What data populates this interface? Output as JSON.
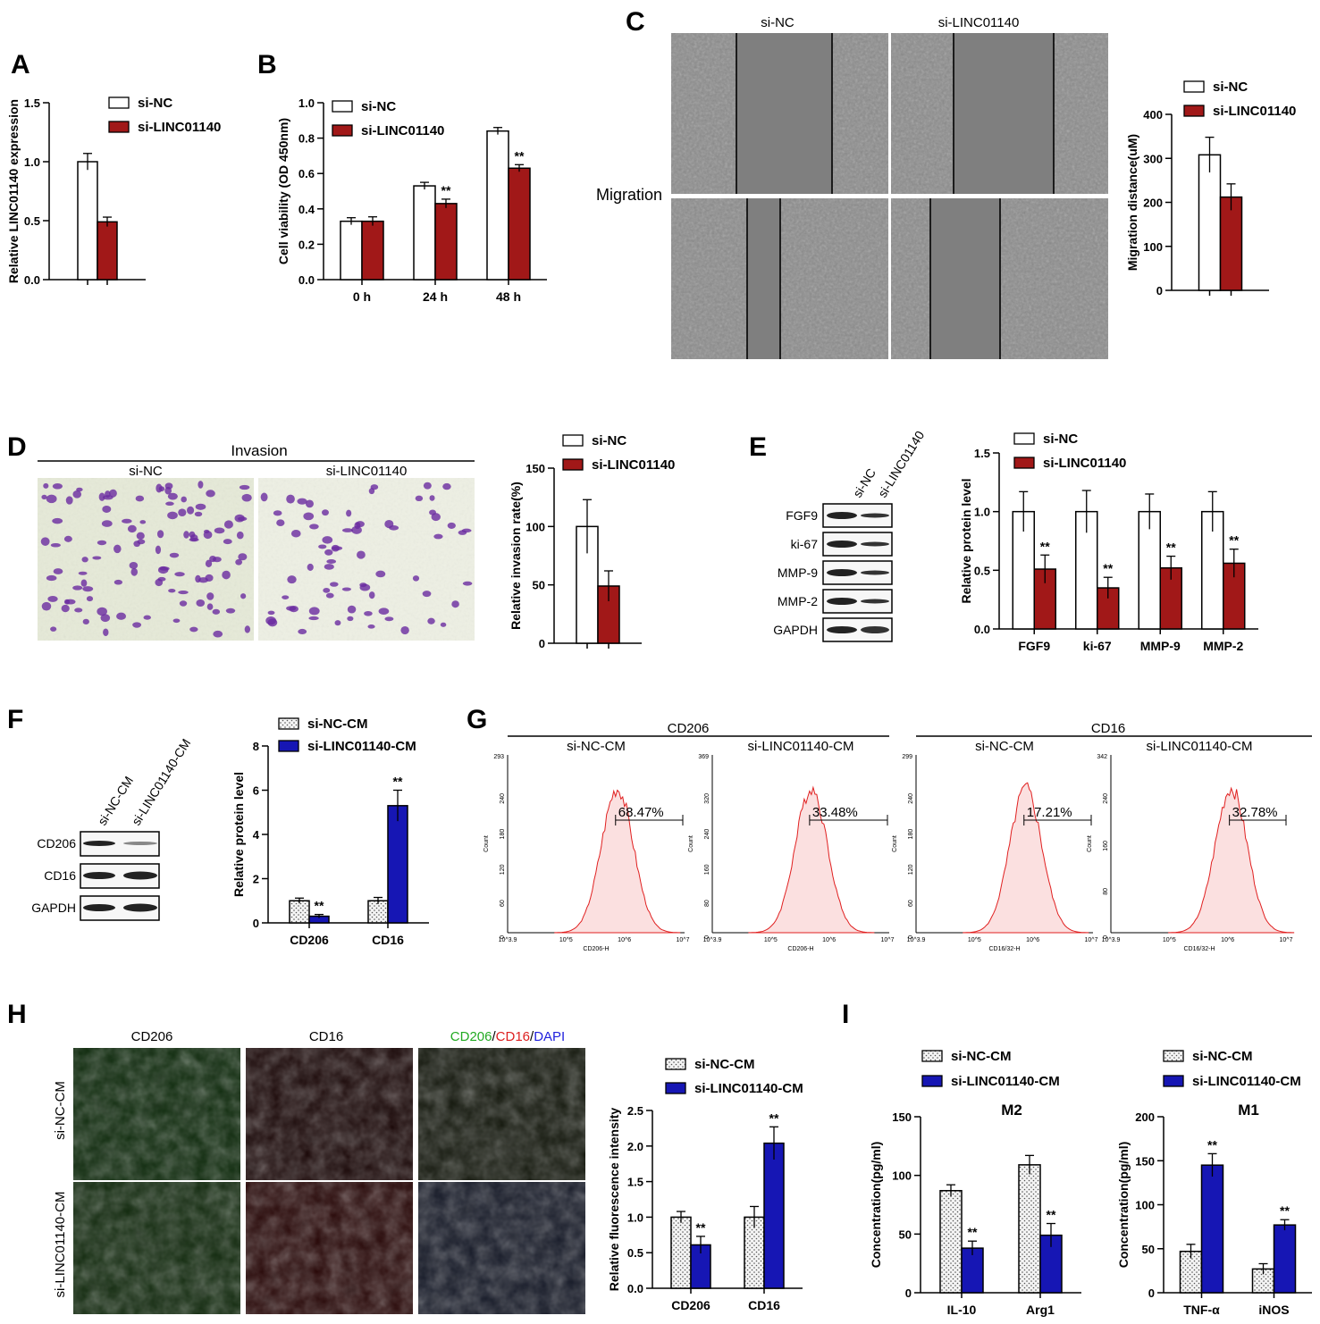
{
  "colors": {
    "nc": "#ffffff",
    "si": "#a11818",
    "cm_nc": "#f2f2f2",
    "cm_si": "#1616b4",
    "hist_fill": "#fbe0e0",
    "hist_line": "#e02020",
    "dot_pattern": "dotted-fill"
  },
  "panels": {
    "A": {
      "letter": "A",
      "legend": [
        "si-NC",
        "si-LINC01140"
      ],
      "chart_data": {
        "type": "bar",
        "categories": [
          ""
        ],
        "series": [
          {
            "name": "si-NC",
            "values": [
              1.0
            ],
            "errors": [
              0.07
            ]
          },
          {
            "name": "si-LINC01140",
            "values": [
              0.49
            ],
            "errors": [
              0.04
            ]
          }
        ],
        "ylabel": "Relative LINC01140 expression",
        "ylim": [
          0,
          1.5
        ],
        "yticks": [
          "0.0",
          "0.5",
          "1.0",
          "1.5"
        ],
        "annotations": [
          "",
          "**"
        ]
      }
    },
    "B": {
      "letter": "B",
      "legend": [
        "si-NC",
        "si-LINC01140"
      ],
      "chart_data": {
        "type": "bar",
        "categories": [
          "0 h",
          "24 h",
          "48 h"
        ],
        "series": [
          {
            "name": "si-NC",
            "values": [
              0.33,
              0.53,
              0.84
            ],
            "errors": [
              0.02,
              0.02,
              0.02
            ]
          },
          {
            "name": "si-LINC01140",
            "values": [
              0.33,
              0.43,
              0.63
            ],
            "errors": [
              0.025,
              0.025,
              0.02
            ]
          }
        ],
        "ylabel": "Cell viability (OD 450nm)",
        "ylim": [
          0,
          1.0
        ],
        "yticks": [
          "0.0",
          "0.2",
          "0.4",
          "0.6",
          "0.8",
          "1.0"
        ],
        "annotations": [
          "",
          "**",
          "**"
        ]
      }
    },
    "C": {
      "letter": "C",
      "col_labels": [
        "si-NC",
        "si-LINC01140"
      ],
      "row_label": "Migration",
      "legend": [
        "si-NC",
        "si-LINC01140"
      ],
      "chart_data": {
        "type": "bar",
        "categories": [
          ""
        ],
        "series": [
          {
            "name": "si-NC",
            "values": [
              308
            ],
            "errors": [
              40
            ]
          },
          {
            "name": "si-LINC01140",
            "values": [
              212
            ],
            "errors": [
              30
            ]
          }
        ],
        "ylabel": "Migration distance(uM)",
        "ylim": [
          0,
          400
        ],
        "yticks": [
          "0",
          "100",
          "200",
          "300",
          "400"
        ],
        "annotations": [
          "",
          "*"
        ]
      }
    },
    "D": {
      "letter": "D",
      "header": "Invasion",
      "col_labels": [
        "si-NC",
        "si-LINC01140"
      ],
      "legend": [
        "si-NC",
        "si-LINC01140"
      ],
      "chart_data": {
        "type": "bar",
        "categories": [
          ""
        ],
        "series": [
          {
            "name": "si-NC",
            "values": [
              100
            ],
            "errors": [
              23
            ]
          },
          {
            "name": "si-LINC01140",
            "values": [
              49
            ],
            "errors": [
              13
            ]
          }
        ],
        "ylabel": "Relative invasion rate(%)",
        "ylim": [
          0,
          150
        ],
        "yticks": [
          "0",
          "50",
          "100",
          "150"
        ],
        "annotations": [
          "",
          "*"
        ]
      }
    },
    "E": {
      "letter": "E",
      "blot_lanes": [
        "si-NC",
        "si-LINC01140"
      ],
      "blot_rows": [
        "FGF9",
        "ki-67",
        "MMP-9",
        "MMP-2",
        "GAPDH"
      ],
      "legend": [
        "si-NC",
        "si-LINC01140"
      ],
      "chart_data": {
        "type": "bar",
        "categories": [
          "FGF9",
          "ki-67",
          "MMP-9",
          "MMP-2"
        ],
        "series": [
          {
            "name": "si-NC",
            "values": [
              1.0,
              1.0,
              1.0,
              1.0
            ],
            "errors": [
              0.17,
              0.18,
              0.15,
              0.17
            ]
          },
          {
            "name": "si-LINC01140",
            "values": [
              0.51,
              0.35,
              0.52,
              0.56
            ],
            "errors": [
              0.12,
              0.09,
              0.1,
              0.12
            ]
          }
        ],
        "ylabel": "Relative protein level",
        "ylim": [
          0,
          1.5
        ],
        "yticks": [
          "0.0",
          "0.5",
          "1.0",
          "1.5"
        ],
        "annotations": [
          "**",
          "**",
          "**",
          "**"
        ]
      }
    },
    "F": {
      "letter": "F",
      "blot_lanes": [
        "si-NC-CM",
        "si-LINC01140-CM"
      ],
      "blot_rows": [
        "CD206",
        "CD16",
        "GAPDH"
      ],
      "legend": [
        "si-NC-CM",
        "si-LINC01140-CM"
      ],
      "chart_data": {
        "type": "bar",
        "categories": [
          "CD206",
          "CD16"
        ],
        "series": [
          {
            "name": "si-NC-CM",
            "values": [
              1.0,
              1.0
            ],
            "errors": [
              0.12,
              0.15
            ]
          },
          {
            "name": "si-LINC01140-CM",
            "values": [
              0.3,
              5.3
            ],
            "errors": [
              0.08,
              0.7
            ]
          }
        ],
        "ylabel": "Relative protein level",
        "ylim": [
          0,
          8
        ],
        "yticks": [
          "0",
          "2",
          "4",
          "6",
          "8"
        ],
        "annotations": [
          "**",
          "**"
        ]
      }
    },
    "G": {
      "letter": "G",
      "groups": [
        "CD206",
        "CD16"
      ],
      "subs": [
        "si-NC-CM",
        "si-LINC01140-CM",
        "si-NC-CM",
        "si-LINC01140-CM"
      ],
      "percents": [
        "68.47%",
        "33.48%",
        "17.21%",
        "32.78%"
      ],
      "ymax": [
        "293",
        "369",
        "299",
        "342"
      ],
      "yticks_a": [
        "240",
        "180",
        "120",
        "60",
        "0"
      ],
      "yticks_b": [
        "320",
        "240",
        "160",
        "80",
        "0"
      ],
      "yticks_c": [
        "240",
        "180",
        "120",
        "60",
        "0"
      ],
      "yticks_d": [
        "240",
        "160",
        "80",
        "0"
      ],
      "ylabel": "Count",
      "xticks": [
        "10^3.9",
        "10^5",
        "10^6",
        "10^7"
      ],
      "xlabels": [
        "CD206-H",
        "CD206-H",
        "CD16/32-H",
        "CD16/32-H"
      ]
    },
    "H": {
      "letter": "H",
      "col_labels": [
        "CD206",
        "CD16"
      ],
      "merge_label": [
        "CD206",
        "/",
        "CD16",
        "/",
        "DAPI"
      ],
      "row_labels": [
        "si-NC-CM",
        "si-LINC01140-CM"
      ],
      "legend": [
        "si-NC-CM",
        "si-LINC01140-CM"
      ],
      "chart_data": {
        "type": "bar",
        "categories": [
          "CD206",
          "CD16"
        ],
        "series": [
          {
            "name": "si-NC-CM",
            "values": [
              1.0,
              1.0
            ],
            "errors": [
              0.08,
              0.15
            ]
          },
          {
            "name": "si-LINC01140-CM",
            "values": [
              0.61,
              2.04
            ],
            "errors": [
              0.12,
              0.23
            ]
          }
        ],
        "ylabel": "Relative fluorescence intensity",
        "ylim": [
          0,
          2.5
        ],
        "yticks": [
          "0.0",
          "0.5",
          "1.0",
          "1.5",
          "2.0",
          "2.5"
        ],
        "annotations": [
          "**",
          "**"
        ]
      }
    },
    "I": {
      "letter": "I",
      "legend": [
        "si-NC-CM",
        "si-LINC01140-CM"
      ],
      "chart_data": [
        {
          "type": "bar",
          "title": "M2",
          "categories": [
            "IL-10",
            "Arg1"
          ],
          "series": [
            {
              "name": "si-NC-CM",
              "values": [
                87,
                109
              ],
              "errors": [
                5,
                8
              ]
            },
            {
              "name": "si-LINC01140-CM",
              "values": [
                38,
                49
              ],
              "errors": [
                6,
                10
              ]
            }
          ],
          "ylabel": "Concentration(pg/ml)",
          "ylim": [
            0,
            150
          ],
          "yticks": [
            "0",
            "50",
            "100",
            "150"
          ],
          "annotations": [
            "**",
            "**"
          ]
        },
        {
          "type": "bar",
          "title": "M1",
          "categories": [
            "TNF-α",
            "iNOS"
          ],
          "series": [
            {
              "name": "si-NC-CM",
              "values": [
                47,
                27
              ],
              "errors": [
                8,
                6
              ]
            },
            {
              "name": "si-LINC01140-CM",
              "values": [
                145,
                77
              ],
              "errors": [
                13,
                6
              ]
            }
          ],
          "ylabel": "Concentration(pg/ml)",
          "ylim": [
            0,
            200
          ],
          "yticks": [
            "0",
            "50",
            "100",
            "150",
            "200"
          ],
          "annotations": [
            "**",
            "**"
          ]
        }
      ]
    }
  }
}
